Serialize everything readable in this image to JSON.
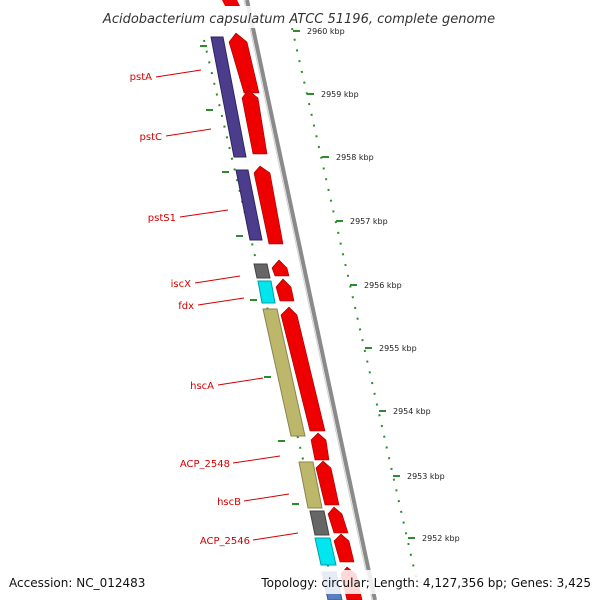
{
  "title": "Acidobacterium capsulatum ATCC 51196, complete genome",
  "accession": "Accession: NC_012483",
  "summary": "Topology: circular; Length: 4,127,356 bp; Genes: 3,425",
  "scale_labels": [
    "2960 kbp",
    "2959 kbp",
    "2958 kbp",
    "2957 kbp",
    "2956 kbp",
    "2955 kbp",
    "2954 kbp",
    "2953 kbp",
    "2952 kbp"
  ],
  "gene_labels": [
    "pstA",
    "pstC",
    "pstS1",
    "iscX",
    "fdx",
    "hscA",
    "ACP_2548",
    "hscB",
    "ACP_2546"
  ],
  "colors": {
    "backbone": "#8a8a8a",
    "tick": "#2e8b2e",
    "cds": "#ee0000",
    "label": "#d40000",
    "pst_genes": "#4b3c8c",
    "iscX_gene": "#666666",
    "fdx_gene": "#00e5ee",
    "hsc_genes": "#bdb76b"
  }
}
